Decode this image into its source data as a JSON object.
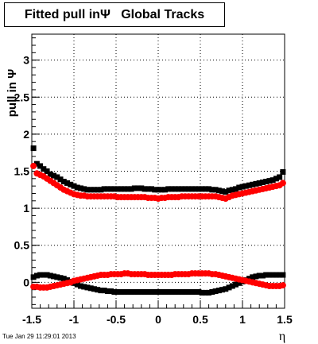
{
  "title": "Fitted pull inΨ   Global Tracks",
  "timestamp": "Tue Jan 29 11:29:01 2013",
  "chart_data": {
    "type": "scatter",
    "xlabel": "η",
    "ylabel": "pull in  Ψ",
    "xlim": [
      -1.5,
      1.5
    ],
    "ylim": [
      -0.35,
      3.35
    ],
    "xticks": [
      "-1.5",
      "-1",
      "-0.5",
      "0",
      "0.5",
      "1",
      "1.5"
    ],
    "yticks": [
      "0",
      "0.5",
      "1",
      "1.5",
      "2",
      "2.5",
      "3"
    ],
    "grid": true,
    "colors": {
      "black": "#000000",
      "red": "#ff0000"
    },
    "series": [
      {
        "color": "#000000",
        "x": [
          -1.48,
          -1.44,
          -1.4,
          -1.36,
          -1.32,
          -1.28,
          -1.24,
          -1.2,
          -1.16,
          -1.12,
          -1.08,
          -1.04,
          -1,
          -0.96,
          -0.92,
          -0.88,
          -0.84,
          -0.8,
          -0.76,
          -0.72,
          -0.68,
          -0.64,
          -0.6,
          -0.56,
          -0.52,
          -0.48,
          -0.44,
          -0.4,
          -0.36,
          -0.32,
          -0.28,
          -0.24,
          -0.2,
          -0.16,
          -0.12,
          -0.08,
          -0.04,
          0,
          0.04,
          0.08,
          0.12,
          0.16,
          0.2,
          0.24,
          0.28,
          0.32,
          0.36,
          0.4,
          0.44,
          0.48,
          0.52,
          0.56,
          0.6,
          0.64,
          0.68,
          0.72,
          0.76,
          0.8,
          0.84,
          0.88,
          0.92,
          0.96,
          1,
          1.04,
          1.08,
          1.12,
          1.16,
          1.2,
          1.24,
          1.28,
          1.32,
          1.36,
          1.4,
          1.44,
          1.48
        ],
        "y": [
          1.81,
          1.6,
          1.57,
          1.53,
          1.5,
          1.46,
          1.44,
          1.42,
          1.39,
          1.36,
          1.34,
          1.32,
          1.3,
          1.28,
          1.27,
          1.26,
          1.25,
          1.25,
          1.25,
          1.25,
          1.25,
          1.26,
          1.26,
          1.26,
          1.26,
          1.26,
          1.26,
          1.26,
          1.26,
          1.26,
          1.27,
          1.27,
          1.27,
          1.26,
          1.26,
          1.26,
          1.25,
          1.25,
          1.25,
          1.25,
          1.26,
          1.26,
          1.26,
          1.26,
          1.26,
          1.26,
          1.26,
          1.26,
          1.26,
          1.26,
          1.26,
          1.26,
          1.26,
          1.25,
          1.25,
          1.24,
          1.23,
          1.22,
          1.24,
          1.25,
          1.26,
          1.28,
          1.29,
          1.3,
          1.31,
          1.32,
          1.33,
          1.34,
          1.35,
          1.36,
          1.37,
          1.38,
          1.4,
          1.42,
          1.49
        ]
      },
      {
        "color": "#ff0000",
        "x": [
          -1.48,
          -1.44,
          -1.4,
          -1.36,
          -1.32,
          -1.28,
          -1.24,
          -1.2,
          -1.16,
          -1.12,
          -1.08,
          -1.04,
          -1,
          -0.96,
          -0.92,
          -0.88,
          -0.84,
          -0.8,
          -0.76,
          -0.72,
          -0.68,
          -0.64,
          -0.6,
          -0.56,
          -0.52,
          -0.48,
          -0.44,
          -0.4,
          -0.36,
          -0.32,
          -0.28,
          -0.24,
          -0.2,
          -0.16,
          -0.12,
          -0.08,
          -0.04,
          0,
          0.04,
          0.08,
          0.12,
          0.16,
          0.2,
          0.24,
          0.28,
          0.32,
          0.36,
          0.4,
          0.44,
          0.48,
          0.52,
          0.56,
          0.6,
          0.64,
          0.68,
          0.72,
          0.76,
          0.8,
          0.84,
          0.88,
          0.92,
          0.96,
          1,
          1.04,
          1.08,
          1.12,
          1.16,
          1.2,
          1.24,
          1.28,
          1.32,
          1.36,
          1.4,
          1.44,
          1.48
        ],
        "y": [
          1.57,
          1.47,
          1.45,
          1.43,
          1.4,
          1.37,
          1.34,
          1.31,
          1.28,
          1.25,
          1.23,
          1.21,
          1.19,
          1.18,
          1.17,
          1.17,
          1.16,
          1.16,
          1.16,
          1.16,
          1.16,
          1.16,
          1.16,
          1.16,
          1.16,
          1.15,
          1.15,
          1.15,
          1.15,
          1.15,
          1.15,
          1.15,
          1.15,
          1.15,
          1.14,
          1.14,
          1.14,
          1.13,
          1.14,
          1.14,
          1.15,
          1.15,
          1.15,
          1.15,
          1.16,
          1.16,
          1.16,
          1.16,
          1.16,
          1.16,
          1.16,
          1.16,
          1.16,
          1.16,
          1.16,
          1.15,
          1.14,
          1.13,
          1.15,
          1.17,
          1.18,
          1.19,
          1.2,
          1.21,
          1.22,
          1.23,
          1.24,
          1.25,
          1.26,
          1.27,
          1.28,
          1.29,
          1.3,
          1.31,
          1.34
        ]
      },
      {
        "color": "#000000",
        "x": [
          -1.48,
          -1.44,
          -1.4,
          -1.36,
          -1.32,
          -1.28,
          -1.24,
          -1.2,
          -1.16,
          -1.12,
          -1.08,
          -1.04,
          -1,
          -0.96,
          -0.92,
          -0.88,
          -0.84,
          -0.8,
          -0.76,
          -0.72,
          -0.68,
          -0.64,
          -0.6,
          -0.56,
          -0.52,
          -0.48,
          -0.44,
          -0.4,
          -0.36,
          -0.32,
          -0.28,
          -0.24,
          -0.2,
          -0.16,
          -0.12,
          -0.08,
          -0.04,
          0,
          0.04,
          0.08,
          0.12,
          0.16,
          0.2,
          0.24,
          0.28,
          0.32,
          0.36,
          0.4,
          0.44,
          0.48,
          0.52,
          0.56,
          0.6,
          0.64,
          0.68,
          0.72,
          0.76,
          0.8,
          0.84,
          0.88,
          0.92,
          0.96,
          1,
          1.04,
          1.08,
          1.12,
          1.16,
          1.2,
          1.24,
          1.28,
          1.32,
          1.36,
          1.4,
          1.44,
          1.48
        ],
        "y": [
          0.07,
          0.09,
          0.1,
          0.1,
          0.1,
          0.09,
          0.08,
          0.07,
          0.06,
          0.05,
          0.03,
          0.01,
          -0.01,
          -0.03,
          -0.05,
          -0.06,
          -0.07,
          -0.08,
          -0.09,
          -0.1,
          -0.11,
          -0.11,
          -0.12,
          -0.12,
          -0.13,
          -0.13,
          -0.13,
          -0.13,
          -0.13,
          -0.13,
          -0.13,
          -0.13,
          -0.13,
          -0.13,
          -0.13,
          -0.13,
          -0.13,
          -0.13,
          -0.13,
          -0.13,
          -0.13,
          -0.13,
          -0.13,
          -0.13,
          -0.13,
          -0.13,
          -0.13,
          -0.13,
          -0.13,
          -0.13,
          -0.14,
          -0.14,
          -0.14,
          -0.13,
          -0.12,
          -0.11,
          -0.1,
          -0.09,
          -0.07,
          -0.05,
          -0.03,
          -0.01,
          0.01,
          0.03,
          0.05,
          0.07,
          0.08,
          0.09,
          0.09,
          0.1,
          0.1,
          0.1,
          0.1,
          0.1,
          0.1
        ]
      },
      {
        "color": "#ff0000",
        "x": [
          -1.48,
          -1.44,
          -1.4,
          -1.36,
          -1.32,
          -1.28,
          -1.24,
          -1.2,
          -1.16,
          -1.12,
          -1.08,
          -1.04,
          -1,
          -0.96,
          -0.92,
          -0.88,
          -0.84,
          -0.8,
          -0.76,
          -0.72,
          -0.68,
          -0.64,
          -0.6,
          -0.56,
          -0.52,
          -0.48,
          -0.44,
          -0.4,
          -0.36,
          -0.32,
          -0.28,
          -0.24,
          -0.2,
          -0.16,
          -0.12,
          -0.08,
          -0.04,
          0,
          0.04,
          0.08,
          0.12,
          0.16,
          0.2,
          0.24,
          0.28,
          0.32,
          0.36,
          0.4,
          0.44,
          0.48,
          0.52,
          0.56,
          0.6,
          0.64,
          0.68,
          0.72,
          0.76,
          0.8,
          0.84,
          0.88,
          0.92,
          0.96,
          1,
          1.04,
          1.08,
          1.12,
          1.16,
          1.2,
          1.24,
          1.28,
          1.32,
          1.36,
          1.4,
          1.44,
          1.48
        ],
        "y": [
          -0.06,
          -0.06,
          -0.07,
          -0.07,
          -0.07,
          -0.06,
          -0.05,
          -0.04,
          -0.03,
          -0.02,
          -0.01,
          0,
          0.02,
          0.03,
          0.04,
          0.05,
          0.06,
          0.07,
          0.08,
          0.09,
          0.1,
          0.1,
          0.1,
          0.11,
          0.11,
          0.11,
          0.11,
          0.12,
          0.12,
          0.11,
          0.11,
          0.11,
          0.11,
          0.11,
          0.1,
          0.1,
          0.1,
          0.1,
          0.1,
          0.1,
          0.1,
          0.1,
          0.11,
          0.11,
          0.11,
          0.11,
          0.11,
          0.12,
          0.12,
          0.12,
          0.12,
          0.12,
          0.12,
          0.11,
          0.11,
          0.1,
          0.09,
          0.08,
          0.07,
          0.06,
          0.05,
          0.04,
          0.03,
          0.02,
          0.01,
          0,
          -0.01,
          -0.02,
          -0.03,
          -0.04,
          -0.05,
          -0.05,
          -0.05,
          -0.05,
          -0.04
        ]
      }
    ]
  }
}
